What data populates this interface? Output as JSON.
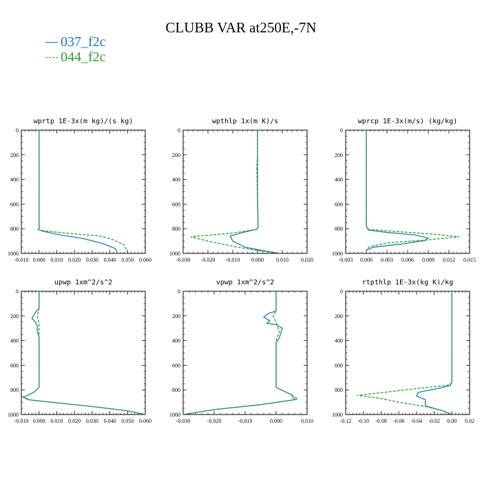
{
  "title": "CLUBB VAR at250E,-7N",
  "legend": [
    {
      "label": "037_f2c",
      "color": "#1f77b4",
      "dash": false
    },
    {
      "label": "044_f2c",
      "color": "#2ca02c",
      "dash": true
    }
  ],
  "chart_data": [
    {
      "type": "line",
      "title": "wprtp  1E-3x(m kg)/(s kg)",
      "xlim": [
        -0.01,
        0.06
      ],
      "ylim": [
        1000,
        0
      ],
      "xticks": [
        -0.01,
        0.0,
        0.01,
        0.02,
        0.03,
        0.04,
        0.05,
        0.06
      ],
      "xticklabels": [
        "-0.010",
        "0.000",
        "0.010",
        "0.020",
        "0.030",
        "0.040",
        "0.050",
        "0.060"
      ],
      "yticks": [
        0,
        200,
        400,
        600,
        800,
        1000
      ],
      "yticklabels": [
        "0",
        "200",
        "400",
        "600",
        "800",
        "1000"
      ],
      "series": [
        {
          "name": "037_f2c",
          "x": [
            0.0,
            0.0,
            0.0,
            0.0,
            0.0002,
            -0.0005,
            0.002,
            0.012,
            0.025,
            0.036,
            0.043,
            0.044
          ],
          "y": [
            0,
            200,
            500,
            760,
            790,
            805,
            820,
            850,
            880,
            920,
            960,
            990
          ]
        },
        {
          "name": "044_f2c",
          "x": [
            0.0,
            0.0,
            0.0,
            0.0,
            0.0002,
            -0.0005,
            0.002,
            0.015,
            0.035,
            0.042,
            0.048,
            0.05
          ],
          "y": [
            0,
            200,
            500,
            760,
            790,
            805,
            815,
            835,
            860,
            890,
            930,
            990
          ]
        }
      ]
    },
    {
      "type": "line",
      "title": "wpthlp  1x(m K)/s",
      "xlim": [
        -0.03,
        0.02
      ],
      "ylim": [
        1000,
        0
      ],
      "xticks": [
        -0.03,
        -0.02,
        -0.01,
        0.0,
        0.01,
        0.02
      ],
      "xticklabels": [
        "-0.030",
        "-0.020",
        "-0.010",
        "0.000",
        "0.010",
        "0.020"
      ],
      "yticks": [
        0,
        200,
        400,
        600,
        800,
        1000
      ],
      "yticklabels": [
        "0",
        "200",
        "400",
        "600",
        "800",
        "1000"
      ],
      "series": [
        {
          "name": "037_f2c",
          "x": [
            0.0,
            0.0,
            0.0,
            0.0002,
            0.0003,
            -0.0005,
            -0.006,
            -0.011,
            -0.01,
            -0.005,
            0.003,
            0.009
          ],
          "y": [
            0,
            200,
            500,
            770,
            790,
            805,
            830,
            860,
            900,
            950,
            980,
            1000
          ]
        },
        {
          "name": "044_f2c",
          "x": [
            0.0,
            0.0,
            -0.0003,
            0.0,
            0.0003,
            -0.0005,
            -0.01,
            -0.027,
            -0.02,
            -0.008,
            0.003,
            0.009
          ],
          "y": [
            0,
            200,
            300,
            600,
            790,
            805,
            835,
            865,
            900,
            950,
            985,
            1000
          ]
        }
      ]
    },
    {
      "type": "line",
      "title": "wprcp  1E-3x(m/s) (kg/kg)",
      "xlim": [
        -0.003,
        0.015
      ],
      "ylim": [
        1000,
        0
      ],
      "xticks": [
        -0.003,
        0.0,
        0.003,
        0.006,
        0.009,
        0.012,
        0.015
      ],
      "xticklabels": [
        "-0.003",
        "0.000",
        "0.003",
        "0.006",
        "0.009",
        "0.012",
        "0.015"
      ],
      "yticks": [
        0,
        200,
        400,
        600,
        800,
        1000
      ],
      "yticklabels": [
        "0",
        "200",
        "400",
        "600",
        "800",
        "1000"
      ],
      "series": [
        {
          "name": "037_f2c",
          "x": [
            0.0,
            0.0,
            0.0,
            0.0,
            0.0003,
            0.003,
            0.007,
            0.009,
            0.0085,
            0.005,
            0.001,
            0.0
          ],
          "y": [
            0,
            200,
            500,
            780,
            810,
            830,
            850,
            875,
            895,
            925,
            950,
            975
          ]
        },
        {
          "name": "044_f2c",
          "x": [
            0.0,
            0.0,
            0.0,
            0.0,
            0.0003,
            0.005,
            0.01,
            0.0135,
            0.009,
            0.003,
            0.0005,
            0.0
          ],
          "y": [
            0,
            200,
            500,
            780,
            805,
            825,
            845,
            865,
            890,
            915,
            945,
            970
          ]
        }
      ]
    },
    {
      "type": "line",
      "title": "upwp  1xm^2/s^2",
      "xlim": [
        -0.01,
        0.06
      ],
      "ylim": [
        1000,
        0
      ],
      "xticks": [
        -0.01,
        0.0,
        0.01,
        0.02,
        0.03,
        0.04,
        0.05,
        0.06
      ],
      "xticklabels": [
        "-0.010",
        "0.000",
        "0.010",
        "0.020",
        "0.030",
        "0.040",
        "0.050",
        "0.060"
      ],
      "yticks": [
        0,
        200,
        400,
        600,
        800,
        1000
      ],
      "yticklabels": [
        "0",
        "200",
        "400",
        "600",
        "800",
        "1000"
      ],
      "series": [
        {
          "name": "037_f2c",
          "x": [
            0.0,
            0.0,
            -0.002,
            -0.004,
            -0.002,
            -0.001,
            -0.001,
            0.0,
            0.0,
            -0.003,
            -0.009,
            -0.006,
            0.01,
            0.03,
            0.05,
            0.06
          ],
          "y": [
            0,
            140,
            170,
            220,
            250,
            280,
            320,
            380,
            780,
            820,
            860,
            880,
            905,
            935,
            970,
            1000
          ]
        },
        {
          "name": "044_f2c",
          "x": [
            0.0,
            0.0,
            -0.001,
            0.0,
            0.0,
            0.0,
            -0.003,
            -0.008,
            -0.006,
            0.01,
            0.03,
            0.05,
            0.06
          ],
          "y": [
            0,
            140,
            200,
            260,
            330,
            780,
            820,
            855,
            880,
            905,
            935,
            970,
            1000
          ]
        }
      ]
    },
    {
      "type": "line",
      "title": "vpwp  1xm^2/s^2",
      "xlim": [
        -0.03,
        0.01
      ],
      "ylim": [
        1000,
        0
      ],
      "xticks": [
        -0.03,
        -0.02,
        -0.01,
        0.0,
        0.01
      ],
      "xticklabels": [
        "-0.030",
        "-0.020",
        "-0.010",
        "0.000",
        "0.010"
      ],
      "yticks": [
        0,
        200,
        400,
        600,
        800,
        1000
      ],
      "yticklabels": [
        "0",
        "200",
        "400",
        "600",
        "800",
        "1000"
      ],
      "series": [
        {
          "name": "037_f2c",
          "x": [
            0.0,
            0.0,
            -0.0025,
            -0.004,
            -0.002,
            -0.003,
            0.0,
            0.002,
            0.001,
            0.0,
            0.0,
            0.005,
            0.006,
            -0.005,
            -0.02,
            -0.03
          ],
          "y": [
            0,
            160,
            180,
            210,
            240,
            260,
            270,
            300,
            380,
            420,
            780,
            840,
            880,
            920,
            960,
            1000
          ]
        },
        {
          "name": "044_f2c",
          "x": [
            0.0,
            0.0,
            -0.001,
            0.0,
            0.001,
            0.0,
            0.0,
            0.005,
            0.007,
            -0.005,
            -0.02,
            -0.03
          ],
          "y": [
            0,
            160,
            200,
            250,
            330,
            400,
            780,
            840,
            875,
            920,
            960,
            1000
          ]
        }
      ]
    },
    {
      "type": "line",
      "title": "rtpthlp  1E-3x(kg K)/kg",
      "xlim": [
        -0.12,
        0.02
      ],
      "ylim": [
        1000,
        0
      ],
      "xticks": [
        -0.12,
        -0.1,
        -0.08,
        -0.06,
        -0.04,
        -0.02,
        0.0,
        0.02
      ],
      "xticklabels": [
        "-0.12",
        "-0.10",
        "-0.08",
        "-0.06",
        "-0.04",
        "-0.02",
        "0.00",
        "0.02"
      ],
      "yticks": [
        0,
        200,
        400,
        600,
        800,
        1000
      ],
      "yticklabels": [
        "0",
        "200",
        "400",
        "600",
        "800",
        "1000"
      ],
      "series": [
        {
          "name": "037_f2c",
          "x": [
            0.0,
            0.0,
            0.0,
            -0.002,
            -0.02,
            -0.038,
            -0.04,
            -0.03,
            -0.03,
            -0.01,
            0.0
          ],
          "y": [
            0,
            300,
            740,
            765,
            795,
            820,
            850,
            880,
            930,
            970,
            1000
          ]
        },
        {
          "name": "044_f2c",
          "x": [
            0.0,
            0.0,
            0.0,
            -0.003,
            -0.04,
            -0.107,
            -0.08,
            -0.06,
            -0.03,
            -0.01,
            0.0
          ],
          "y": [
            0,
            300,
            740,
            760,
            790,
            845,
            870,
            900,
            935,
            970,
            1000
          ]
        }
      ]
    }
  ]
}
